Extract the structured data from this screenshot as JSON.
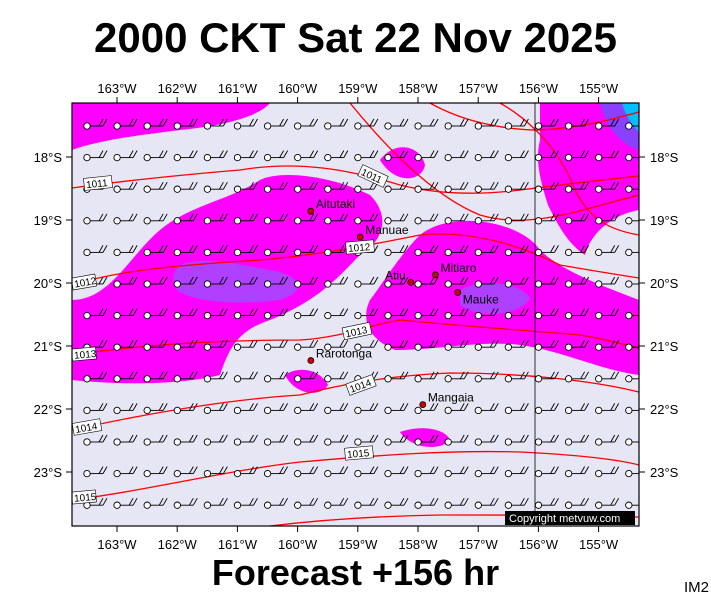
{
  "title": "2000 CKT Sat 22 Nov 2025",
  "footer": "Forecast +156 hr",
  "product_code": "IM2",
  "copyright": "Copyright metvuw.com",
  "colors": {
    "background": "#e6e6f5",
    "rain_light": "#ff00ff",
    "rain_medium": "#b040ff",
    "isobar": "#ff0000",
    "wind": "#000000"
  },
  "lon_labels": [
    "163°W",
    "162°W",
    "161°W",
    "160°W",
    "159°W",
    "158°W",
    "157°W",
    "156°W",
    "155°W"
  ],
  "lat_labels": [
    "18°S",
    "19°S",
    "20°S",
    "21°S",
    "22°S",
    "23°S"
  ],
  "isobar_labels": [
    "1011",
    "1011",
    "1012",
    "1012",
    "1013",
    "1013",
    "1014",
    "1014",
    "1015",
    "1015"
  ],
  "towns": [
    {
      "name": "Aitutaki",
      "lon": -159.78,
      "lat": -18.86
    },
    {
      "name": "Manuae",
      "lon": -158.96,
      "lat": -19.27
    },
    {
      "name": "Mitiaro",
      "lon": -157.71,
      "lat": -19.87
    },
    {
      "name": "Atiu",
      "lon": -158.12,
      "lat": -19.99
    },
    {
      "name": "Mauke",
      "lon": -157.34,
      "lat": -20.15
    },
    {
      "name": "Rarotonga",
      "lon": -159.78,
      "lat": -21.23
    },
    {
      "name": "Mangaia",
      "lon": -157.92,
      "lat": -21.93
    }
  ]
}
